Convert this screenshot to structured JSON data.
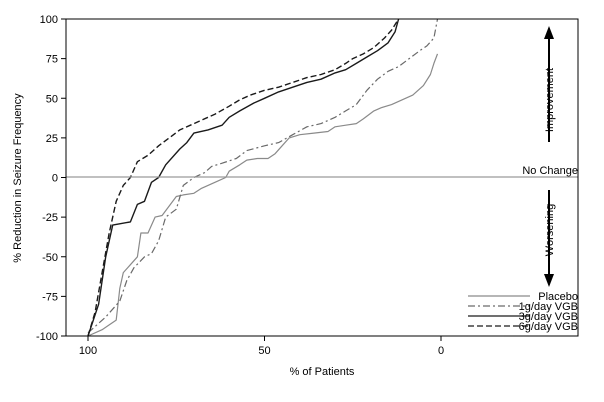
{
  "chart_data": {
    "type": "line",
    "title": "",
    "xlabel": "% of Patients",
    "ylabel": "% Reduction in Seizure Frequency",
    "xlim": [
      100,
      0
    ],
    "x_reversed": true,
    "ylim": [
      -100,
      100
    ],
    "x_ticks": [
      100,
      50,
      0
    ],
    "y_ticks": [
      -100,
      -75,
      -50,
      -25,
      0,
      25,
      50,
      75,
      100
    ],
    "grid": false,
    "legend_position": "bottom-right",
    "reference_line": {
      "y": 0,
      "label": "No Change"
    },
    "annotations": {
      "improvement": "Improvement",
      "worsening": "Worsening"
    },
    "series": [
      {
        "name": "Placebo",
        "style": "solid",
        "color": "#8a8a8a",
        "points": [
          [
            100,
            -100
          ],
          [
            96,
            -96
          ],
          [
            94,
            -93
          ],
          [
            92,
            -90
          ],
          [
            91,
            -70
          ],
          [
            90,
            -60
          ],
          [
            88,
            -55
          ],
          [
            86,
            -50
          ],
          [
            85,
            -35
          ],
          [
            83,
            -35
          ],
          [
            81,
            -25
          ],
          [
            79,
            -24
          ],
          [
            75,
            -12
          ],
          [
            73,
            -11
          ],
          [
            70,
            -10
          ],
          [
            68,
            -7
          ],
          [
            66,
            -5
          ],
          [
            63,
            -2
          ],
          [
            61,
            0
          ],
          [
            60,
            4
          ],
          [
            57,
            8
          ],
          [
            55,
            11
          ],
          [
            52,
            12
          ],
          [
            49,
            12
          ],
          [
            47,
            15
          ],
          [
            45,
            20
          ],
          [
            43,
            25
          ],
          [
            40,
            27
          ],
          [
            36,
            28
          ],
          [
            32,
            29
          ],
          [
            30,
            32
          ],
          [
            27,
            33
          ],
          [
            24,
            34
          ],
          [
            22,
            37
          ],
          [
            19,
            42
          ],
          [
            17,
            44
          ],
          [
            14,
            46
          ],
          [
            11,
            49
          ],
          [
            8,
            52
          ],
          [
            5,
            58
          ],
          [
            3,
            65
          ],
          [
            2,
            72
          ],
          [
            1,
            78
          ]
        ]
      },
      {
        "name": "1g/day VGB",
        "style": "dash-dot",
        "color": "#6a6a6a",
        "points": [
          [
            100,
            -98
          ],
          [
            95,
            -88
          ],
          [
            91,
            -78
          ],
          [
            89,
            -65
          ],
          [
            87,
            -57
          ],
          [
            84,
            -50
          ],
          [
            82,
            -48
          ],
          [
            80,
            -40
          ],
          [
            78,
            -25
          ],
          [
            75,
            -20
          ],
          [
            73,
            -5
          ],
          [
            70,
            0
          ],
          [
            67,
            3
          ],
          [
            65,
            7
          ],
          [
            62,
            9
          ],
          [
            58,
            12
          ],
          [
            55,
            17
          ],
          [
            50,
            20
          ],
          [
            46,
            22
          ],
          [
            42,
            27
          ],
          [
            38,
            32
          ],
          [
            34,
            34
          ],
          [
            30,
            38
          ],
          [
            27,
            42
          ],
          [
            24,
            46
          ],
          [
            21,
            55
          ],
          [
            18,
            62
          ],
          [
            15,
            67
          ],
          [
            12,
            70
          ],
          [
            9,
            75
          ],
          [
            6,
            80
          ],
          [
            4,
            83
          ],
          [
            2,
            88
          ],
          [
            1,
            100
          ]
        ]
      },
      {
        "name": "3g/day VGB",
        "style": "solid",
        "color": "#1a1a1a",
        "points": [
          [
            100,
            -100
          ],
          [
            97,
            -80
          ],
          [
            95,
            -50
          ],
          [
            93,
            -30
          ],
          [
            88,
            -28
          ],
          [
            86,
            -17
          ],
          [
            84,
            -15
          ],
          [
            82,
            -3
          ],
          [
            80,
            0
          ],
          [
            78,
            8
          ],
          [
            74,
            18
          ],
          [
            72,
            22
          ],
          [
            70,
            28
          ],
          [
            66,
            30
          ],
          [
            62,
            33
          ],
          [
            60,
            38
          ],
          [
            57,
            42
          ],
          [
            53,
            47
          ],
          [
            50,
            50
          ],
          [
            46,
            54
          ],
          [
            42,
            57
          ],
          [
            38,
            60
          ],
          [
            34,
            62
          ],
          [
            30,
            66
          ],
          [
            27,
            68
          ],
          [
            24,
            72
          ],
          [
            21,
            76
          ],
          [
            18,
            80
          ],
          [
            15,
            85
          ],
          [
            13,
            92
          ],
          [
            12,
            100
          ]
        ]
      },
      {
        "name": "6g/day VGB",
        "style": "dashed",
        "color": "#1a1a1a",
        "points": [
          [
            100,
            -100
          ],
          [
            98,
            -85
          ],
          [
            96,
            -60
          ],
          [
            94,
            -35
          ],
          [
            92,
            -15
          ],
          [
            90,
            -5
          ],
          [
            88,
            0
          ],
          [
            86,
            10
          ],
          [
            83,
            14
          ],
          [
            80,
            20
          ],
          [
            77,
            25
          ],
          [
            74,
            30
          ],
          [
            71,
            33
          ],
          [
            68,
            36
          ],
          [
            64,
            40
          ],
          [
            60,
            45
          ],
          [
            57,
            49
          ],
          [
            54,
            52
          ],
          [
            50,
            55
          ],
          [
            46,
            57
          ],
          [
            42,
            60
          ],
          [
            38,
            63
          ],
          [
            34,
            65
          ],
          [
            30,
            68
          ],
          [
            27,
            72
          ],
          [
            25,
            75
          ],
          [
            22,
            78
          ],
          [
            19,
            82
          ],
          [
            16,
            88
          ],
          [
            14,
            93
          ],
          [
            12,
            100
          ]
        ]
      }
    ]
  }
}
